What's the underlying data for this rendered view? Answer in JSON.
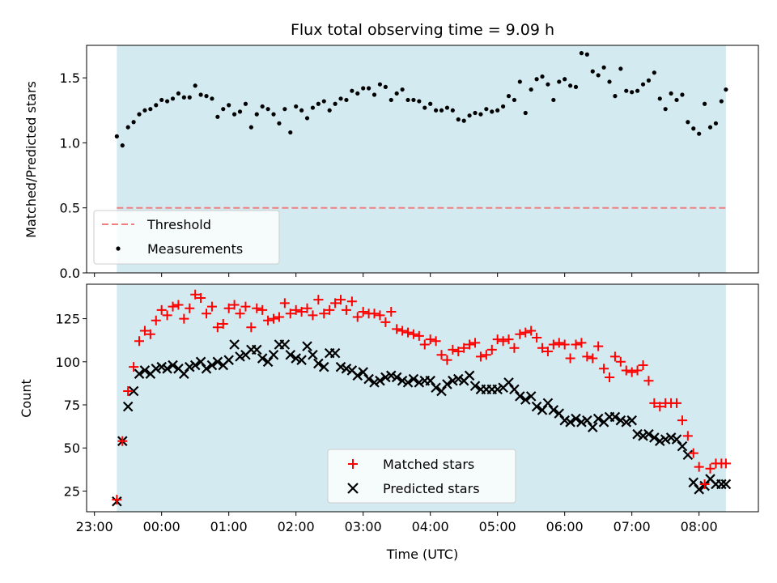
{
  "chart_data": [
    {
      "type": "scatter",
      "title": "Flux total observing time = 9.09 h",
      "xlabel": "",
      "ylabel": "Matched/Predicted stars",
      "xlim": [
        "22:53",
        "08:53"
      ],
      "ylim": [
        0,
        1.75
      ],
      "yticks": [
        0.0,
        0.5,
        1.0,
        1.5
      ],
      "ytick_labels": [
        "0.0",
        "0.5",
        "1.0",
        "1.5"
      ],
      "xticks": [
        "23:00",
        "00:00",
        "01:00",
        "02:00",
        "03:00",
        "04:00",
        "05:00",
        "06:00",
        "07:00",
        "08:00"
      ],
      "shaded_span": [
        "23:20",
        "08:24"
      ],
      "shade_color": "#d3eaf1",
      "threshold": 0.5,
      "threshold_color": "#f08080",
      "grid": false,
      "legend_position": "lower-left",
      "legend": [
        "Threshold",
        "Measurements"
      ],
      "series": [
        {
          "name": "Measurements",
          "marker": "dot",
          "color": "#000000",
          "x": [
            "23:20",
            "23:25",
            "23:30",
            "23:35",
            "23:40",
            "23:45",
            "23:50",
            "23:55",
            "00:00",
            "00:05",
            "00:10",
            "00:15",
            "00:20",
            "00:25",
            "00:30",
            "00:35",
            "00:40",
            "00:45",
            "00:50",
            "00:55",
            "01:00",
            "01:05",
            "01:10",
            "01:15",
            "01:20",
            "01:25",
            "01:30",
            "01:35",
            "01:40",
            "01:45",
            "01:50",
            "01:55",
            "02:00",
            "02:05",
            "02:10",
            "02:15",
            "02:20",
            "02:25",
            "02:30",
            "02:35",
            "02:40",
            "02:45",
            "02:50",
            "02:55",
            "03:00",
            "03:05",
            "03:10",
            "03:15",
            "03:20",
            "03:25",
            "03:30",
            "03:35",
            "03:40",
            "03:45",
            "03:50",
            "03:55",
            "04:00",
            "04:05",
            "04:10",
            "04:15",
            "04:20",
            "04:25",
            "04:30",
            "04:35",
            "04:40",
            "04:45",
            "04:50",
            "04:55",
            "05:00",
            "05:05",
            "05:10",
            "05:15",
            "05:20",
            "05:25",
            "05:30",
            "05:35",
            "05:40",
            "05:45",
            "05:50",
            "05:55",
            "06:00",
            "06:05",
            "06:10",
            "06:15",
            "06:20",
            "06:25",
            "06:30",
            "06:35",
            "06:40",
            "06:45",
            "06:50",
            "06:55",
            "07:00",
            "07:05",
            "07:10",
            "07:15",
            "07:20",
            "07:25",
            "07:30",
            "07:35",
            "07:40",
            "07:45",
            "07:50",
            "07:55",
            "08:00",
            "08:05",
            "08:10",
            "08:15",
            "08:20",
            "08:24"
          ],
          "y": [
            1.05,
            0.98,
            1.12,
            1.16,
            1.22,
            1.25,
            1.26,
            1.29,
            1.33,
            1.32,
            1.34,
            1.38,
            1.35,
            1.35,
            1.44,
            1.37,
            1.36,
            1.34,
            1.2,
            1.26,
            1.29,
            1.22,
            1.24,
            1.3,
            1.12,
            1.22,
            1.28,
            1.26,
            1.22,
            1.15,
            1.26,
            1.08,
            1.28,
            1.25,
            1.19,
            1.27,
            1.3,
            1.32,
            1.25,
            1.3,
            1.34,
            1.33,
            1.4,
            1.38,
            1.42,
            1.42,
            1.37,
            1.45,
            1.43,
            1.33,
            1.38,
            1.41,
            1.33,
            1.33,
            1.32,
            1.27,
            1.3,
            1.25,
            1.25,
            1.27,
            1.25,
            1.18,
            1.17,
            1.21,
            1.23,
            1.22,
            1.26,
            1.24,
            1.25,
            1.28,
            1.36,
            1.33,
            1.47,
            1.23,
            1.41,
            1.49,
            1.51,
            1.45,
            1.33,
            1.47,
            1.49,
            1.44,
            1.43,
            1.69,
            1.68,
            1.55,
            1.52,
            1.58,
            1.47,
            1.36,
            1.57,
            1.4,
            1.39,
            1.4,
            1.45,
            1.48,
            1.54,
            1.34,
            1.26,
            1.38,
            1.33,
            1.37,
            1.16,
            1.11,
            1.07,
            1.3,
            1.12,
            1.15,
            1.32,
            1.41
          ]
        },
        {
          "name": "Threshold",
          "type": "line",
          "style": "dashed",
          "color": "#f08080",
          "y": 0.5
        }
      ]
    },
    {
      "type": "scatter",
      "title": "",
      "xlabel": "Time (UTC)",
      "ylabel": "Count",
      "xlim": [
        "22:53",
        "08:53"
      ],
      "ylim": [
        13,
        145
      ],
      "yticks": [
        25,
        50,
        75,
        100,
        125
      ],
      "ytick_labels": [
        "25",
        "50",
        "75",
        "100",
        "125"
      ],
      "xticks": [
        "23:00",
        "00:00",
        "01:00",
        "02:00",
        "03:00",
        "04:00",
        "05:00",
        "06:00",
        "07:00",
        "08:00"
      ],
      "shaded_span": [
        "23:20",
        "08:24"
      ],
      "shade_color": "#d3eaf1",
      "grid": false,
      "legend_position": "lower-center",
      "legend": [
        "Matched stars",
        "Predicted stars"
      ],
      "series": [
        {
          "name": "Matched stars",
          "marker": "plus",
          "color": "#ff0000",
          "x": [
            "23:20",
            "23:25",
            "23:30",
            "23:35",
            "23:40",
            "23:45",
            "23:50",
            "23:55",
            "00:00",
            "00:05",
            "00:10",
            "00:15",
            "00:20",
            "00:25",
            "00:30",
            "00:35",
            "00:40",
            "00:45",
            "00:50",
            "00:55",
            "01:00",
            "01:05",
            "01:10",
            "01:15",
            "01:20",
            "01:25",
            "01:30",
            "01:35",
            "01:40",
            "01:45",
            "01:50",
            "01:55",
            "02:00",
            "02:05",
            "02:10",
            "02:15",
            "02:20",
            "02:25",
            "02:30",
            "02:35",
            "02:40",
            "02:45",
            "02:50",
            "02:55",
            "03:00",
            "03:05",
            "03:10",
            "03:15",
            "03:20",
            "03:25",
            "03:30",
            "03:35",
            "03:40",
            "03:45",
            "03:50",
            "03:55",
            "04:00",
            "04:05",
            "04:10",
            "04:15",
            "04:20",
            "04:25",
            "04:30",
            "04:35",
            "04:40",
            "04:45",
            "04:50",
            "04:55",
            "05:00",
            "05:05",
            "05:10",
            "05:15",
            "05:20",
            "05:25",
            "05:30",
            "05:35",
            "05:40",
            "05:45",
            "05:50",
            "05:55",
            "06:00",
            "06:05",
            "06:10",
            "06:15",
            "06:20",
            "06:25",
            "06:30",
            "06:35",
            "06:40",
            "06:45",
            "06:50",
            "06:55",
            "07:00",
            "07:05",
            "07:10",
            "07:15",
            "07:20",
            "07:25",
            "07:30",
            "07:35",
            "07:40",
            "07:45",
            "07:50",
            "07:55",
            "08:00",
            "08:05",
            "08:10",
            "08:15",
            "08:20",
            "08:24"
          ],
          "y": [
            20,
            54,
            83,
            97,
            112,
            118,
            116,
            124,
            130,
            127,
            132,
            133,
            125,
            131,
            139,
            137,
            128,
            132,
            120,
            122,
            131,
            133,
            128,
            132,
            120,
            131,
            130,
            124,
            125,
            126,
            134,
            128,
            130,
            129,
            131,
            127,
            136,
            128,
            130,
            134,
            136,
            130,
            135,
            126,
            129,
            128,
            128,
            127,
            123,
            129,
            119,
            118,
            117,
            116,
            115,
            110,
            113,
            112,
            104,
            101,
            107,
            106,
            108,
            110,
            111,
            103,
            104,
            107,
            113,
            112,
            113,
            108,
            116,
            117,
            118,
            114,
            108,
            106,
            110,
            111,
            110,
            102,
            110,
            111,
            103,
            102,
            109,
            96,
            91,
            103,
            100,
            95,
            94,
            95,
            98,
            89,
            76,
            74,
            76,
            76,
            76,
            66,
            57,
            47,
            39,
            29,
            38,
            41,
            41,
            41
          ]
        },
        {
          "name": "Predicted stars",
          "marker": "x",
          "color": "#000000",
          "x": [
            "23:20",
            "23:25",
            "23:30",
            "23:35",
            "23:40",
            "23:45",
            "23:50",
            "23:55",
            "00:00",
            "00:05",
            "00:10",
            "00:15",
            "00:20",
            "00:25",
            "00:30",
            "00:35",
            "00:40",
            "00:45",
            "00:50",
            "00:55",
            "01:00",
            "01:05",
            "01:10",
            "01:15",
            "01:20",
            "01:25",
            "01:30",
            "01:35",
            "01:40",
            "01:45",
            "01:50",
            "01:55",
            "02:00",
            "02:05",
            "02:10",
            "02:15",
            "02:20",
            "02:25",
            "02:30",
            "02:35",
            "02:40",
            "02:45",
            "02:50",
            "02:55",
            "03:00",
            "03:05",
            "03:10",
            "03:15",
            "03:20",
            "03:25",
            "03:30",
            "03:35",
            "03:40",
            "03:45",
            "03:50",
            "03:55",
            "04:00",
            "04:05",
            "04:10",
            "04:15",
            "04:20",
            "04:25",
            "04:30",
            "04:35",
            "04:40",
            "04:45",
            "04:50",
            "04:55",
            "05:00",
            "05:05",
            "05:10",
            "05:15",
            "05:20",
            "05:25",
            "05:30",
            "05:35",
            "05:40",
            "05:45",
            "05:50",
            "05:55",
            "06:00",
            "06:05",
            "06:10",
            "06:15",
            "06:20",
            "06:25",
            "06:30",
            "06:35",
            "06:40",
            "06:45",
            "06:50",
            "06:55",
            "07:00",
            "07:05",
            "07:10",
            "07:15",
            "07:20",
            "07:25",
            "07:30",
            "07:35",
            "07:40",
            "07:45",
            "07:50",
            "07:55",
            "08:00",
            "08:05",
            "08:10",
            "08:15",
            "08:20",
            "08:24"
          ],
          "y": [
            19,
            54,
            74,
            83,
            93,
            95,
            93,
            96,
            97,
            96,
            98,
            96,
            93,
            97,
            98,
            100,
            96,
            98,
            100,
            98,
            101,
            110,
            103,
            104,
            107,
            107,
            102,
            100,
            104,
            110,
            110,
            104,
            102,
            101,
            109,
            104,
            99,
            97,
            105,
            105,
            97,
            96,
            95,
            92,
            94,
            90,
            88,
            89,
            91,
            92,
            91,
            89,
            88,
            90,
            88,
            89,
            89,
            85,
            83,
            87,
            89,
            90,
            89,
            92,
            86,
            84,
            84,
            84,
            84,
            85,
            88,
            84,
            80,
            78,
            80,
            74,
            72,
            76,
            72,
            70,
            66,
            65,
            67,
            65,
            66,
            62,
            67,
            65,
            68,
            68,
            66,
            65,
            66,
            58,
            57,
            58,
            56,
            54,
            55,
            56,
            55,
            51,
            46,
            30,
            26,
            28,
            32,
            29,
            29,
            29
          ]
        }
      ]
    }
  ]
}
